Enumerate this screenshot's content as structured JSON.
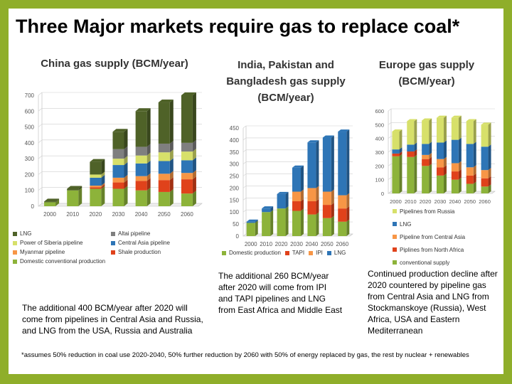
{
  "title": "Three Major markets require gas to replace coal*",
  "footnote": "*assumes 50% reduction in coal use 2020-2040, 50% further reduction by 2060 with 50% of energy replaced by gas, the rest by nuclear + renewables",
  "notes": {
    "china": "The additional 400 BCM/year after 2020 will come from pipelines in Central Asia and Russia, and LNG from the USA, Russia and Australia",
    "india": "The additional 260 BCM/year after 2020 will come from IPI and TAPI pipelines and LNG from East Africa and Middle East",
    "europe": "Continued production decline after 2020 countered by pipeline gas from Central Asia and LNG from Stockmanskoye (Russia), West Africa, USA and Eastern Mediterranean"
  },
  "colors": {
    "dark_green": "#4f6228",
    "gray": "#7f7f7f",
    "light_yellow": "#d7e06a",
    "blue": "#2e75b6",
    "orange": "#f79646",
    "red": "#e0421b",
    "green": "#8db33a"
  },
  "chart_data": [
    {
      "type": "bar",
      "stacked": true,
      "title": "China gas supply (BCM/year)",
      "categories": [
        "2000",
        "2010",
        "2020",
        "2030",
        "2040",
        "2050",
        "2060"
      ],
      "ylim": [
        0,
        700
      ],
      "yticks": [
        0,
        100,
        200,
        300,
        400,
        500,
        600,
        700
      ],
      "grid": true,
      "legend_position": "bottom",
      "series": [
        {
          "name": "Domestic conventional production",
          "color": "#8db33a",
          "values": [
            25,
            100,
            110,
            110,
            100,
            90,
            80
          ]
        },
        {
          "name": "Shale production",
          "color": "#e0421b",
          "values": [
            0,
            0,
            10,
            40,
            60,
            75,
            90
          ]
        },
        {
          "name": "Myanmar pipeline",
          "color": "#f79646",
          "values": [
            0,
            0,
            10,
            30,
            30,
            40,
            40
          ]
        },
        {
          "name": "Central Asia pipeline",
          "color": "#2e75b6",
          "values": [
            0,
            0,
            50,
            80,
            80,
            80,
            80
          ]
        },
        {
          "name": "Power of Siberia pipeline",
          "color": "#d7e06a",
          "values": [
            0,
            0,
            20,
            40,
            50,
            55,
            55
          ]
        },
        {
          "name": "Altai pipeline",
          "color": "#7f7f7f",
          "values": [
            0,
            0,
            0,
            60,
            55,
            55,
            55
          ]
        },
        {
          "name": "LNG",
          "color": "#4f6228",
          "values": [
            5,
            10,
            80,
            110,
            225,
            260,
            300
          ]
        }
      ]
    },
    {
      "type": "bar",
      "stacked": true,
      "title": "India, Pakistan and Bangladesh gas supply (BCM/year)",
      "categories": [
        "2000",
        "2010",
        "2020",
        "2030",
        "2040",
        "2050",
        "2060"
      ],
      "ylim": [
        0,
        450
      ],
      "yticks": [
        0,
        50,
        100,
        150,
        200,
        250,
        300,
        350,
        400,
        450
      ],
      "grid": true,
      "legend_position": "bottom",
      "series": [
        {
          "name": "Domestic production",
          "color": "#8db33a",
          "values": [
            55,
            100,
            115,
            105,
            90,
            75,
            60
          ]
        },
        {
          "name": "TAPI",
          "color": "#e0421b",
          "values": [
            0,
            0,
            0,
            40,
            55,
            55,
            55
          ]
        },
        {
          "name": "IPI",
          "color": "#f79646",
          "values": [
            0,
            0,
            0,
            40,
            55,
            55,
            55
          ]
        },
        {
          "name": "LNG",
          "color": "#2e75b6",
          "values": [
            5,
            15,
            60,
            100,
            190,
            225,
            265
          ]
        }
      ]
    },
    {
      "type": "bar",
      "stacked": true,
      "title": "Europe gas supply (BCM/year)",
      "categories": [
        "2000",
        "2010",
        "2020",
        "2030",
        "2040",
        "2050",
        "2060"
      ],
      "ylim": [
        0,
        600
      ],
      "yticks": [
        0,
        100,
        200,
        300,
        400,
        500,
        600
      ],
      "grid": true,
      "legend_position": "bottom",
      "series": [
        {
          "name": "conventional supply",
          "color": "#8db33a",
          "values": [
            270,
            265,
            200,
            130,
            100,
            70,
            50
          ]
        },
        {
          "name": "Piplines from North Africa",
          "color": "#e0421b",
          "values": [
            20,
            40,
            50,
            60,
            60,
            60,
            60
          ]
        },
        {
          "name": "Pipeline from Central Asia",
          "color": "#f79646",
          "values": [
            0,
            0,
            30,
            60,
            60,
            60,
            60
          ]
        },
        {
          "name": "LNG",
          "color": "#2e75b6",
          "values": [
            30,
            50,
            80,
            120,
            170,
            170,
            170
          ]
        },
        {
          "name": "Pipelines from Russia",
          "color": "#d7e06a",
          "values": [
            130,
            170,
            170,
            180,
            160,
            165,
            160
          ]
        }
      ]
    }
  ]
}
